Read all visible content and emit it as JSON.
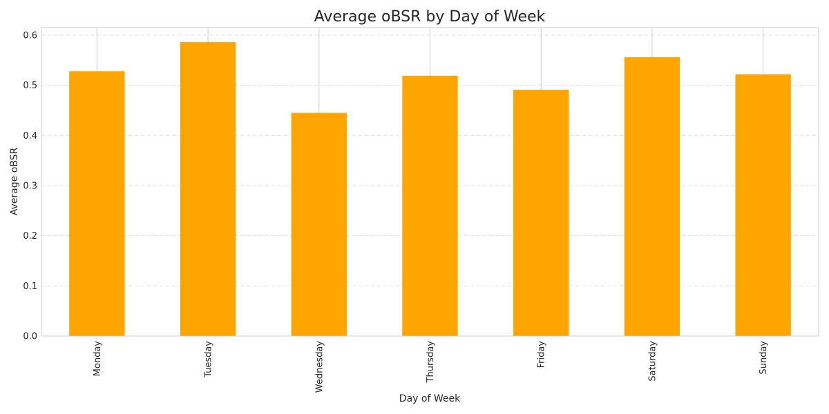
{
  "chart_data": {
    "type": "bar",
    "title": "Average oBSR by Day of Week",
    "xlabel": "Day of Week",
    "ylabel": "Average oBSR",
    "categories": [
      "Monday",
      "Tuesday",
      "Wednesday",
      "Thursday",
      "Friday",
      "Saturday",
      "Sunday"
    ],
    "values": [
      0.528,
      0.586,
      0.445,
      0.519,
      0.491,
      0.556,
      0.522
    ],
    "ylim": [
      0,
      0.615
    ],
    "yticks": [
      0.0,
      0.1,
      0.2,
      0.3,
      0.4,
      0.5,
      0.6
    ],
    "ytick_labels": [
      "0.0",
      "0.1",
      "0.2",
      "0.3",
      "0.4",
      "0.5",
      "0.6"
    ],
    "bar_color": "#ffa500",
    "grid": true,
    "legend": "none"
  }
}
